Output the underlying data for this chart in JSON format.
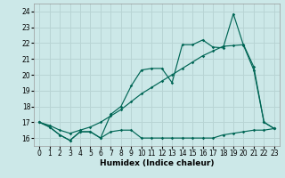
{
  "xlabel": "Humidex (Indice chaleur)",
  "background_color": "#cce8e8",
  "grid_color": "#b8d4d4",
  "line_color": "#006655",
  "xlim": [
    -0.5,
    23.5
  ],
  "ylim": [
    15.5,
    24.5
  ],
  "xticks": [
    0,
    1,
    2,
    3,
    4,
    5,
    6,
    7,
    8,
    9,
    10,
    11,
    12,
    13,
    14,
    15,
    16,
    17,
    18,
    19,
    20,
    21,
    22,
    23
  ],
  "yticks": [
    16,
    17,
    18,
    19,
    20,
    21,
    22,
    23,
    24
  ],
  "curve_baseline_x": [
    0,
    1,
    2,
    3,
    4,
    5,
    6,
    7,
    8,
    9,
    10,
    11,
    12,
    13,
    14,
    15,
    16,
    17,
    18,
    19,
    20,
    21,
    22,
    23
  ],
  "curve_baseline_y": [
    17.0,
    16.7,
    16.2,
    15.85,
    16.4,
    16.4,
    16.0,
    16.4,
    16.5,
    16.5,
    16.0,
    16.0,
    16.0,
    16.0,
    16.0,
    16.0,
    16.0,
    16.0,
    16.2,
    16.3,
    16.4,
    16.5,
    16.5,
    16.6
  ],
  "curve_main_x": [
    0,
    1,
    2,
    3,
    4,
    5,
    6,
    7,
    8,
    9,
    10,
    11,
    12,
    13,
    14,
    15,
    16,
    17,
    18,
    19,
    20,
    21,
    22,
    23
  ],
  "curve_main_y": [
    17.0,
    16.7,
    16.2,
    15.85,
    16.4,
    16.4,
    16.0,
    17.5,
    18.0,
    19.3,
    20.3,
    20.4,
    20.4,
    19.5,
    21.9,
    21.9,
    22.2,
    21.75,
    21.7,
    23.85,
    21.85,
    20.3,
    17.0,
    16.6
  ],
  "curve_diag_x": [
    0,
    1,
    2,
    3,
    4,
    5,
    6,
    7,
    8,
    9,
    10,
    11,
    12,
    13,
    14,
    15,
    16,
    17,
    18,
    19,
    20,
    21,
    22,
    23
  ],
  "curve_diag_y": [
    17.0,
    16.8,
    16.5,
    16.3,
    16.5,
    16.7,
    17.0,
    17.4,
    17.8,
    18.3,
    18.8,
    19.2,
    19.6,
    20.0,
    20.4,
    20.8,
    21.2,
    21.5,
    21.8,
    21.85,
    21.9,
    20.5,
    17.0,
    16.6
  ]
}
